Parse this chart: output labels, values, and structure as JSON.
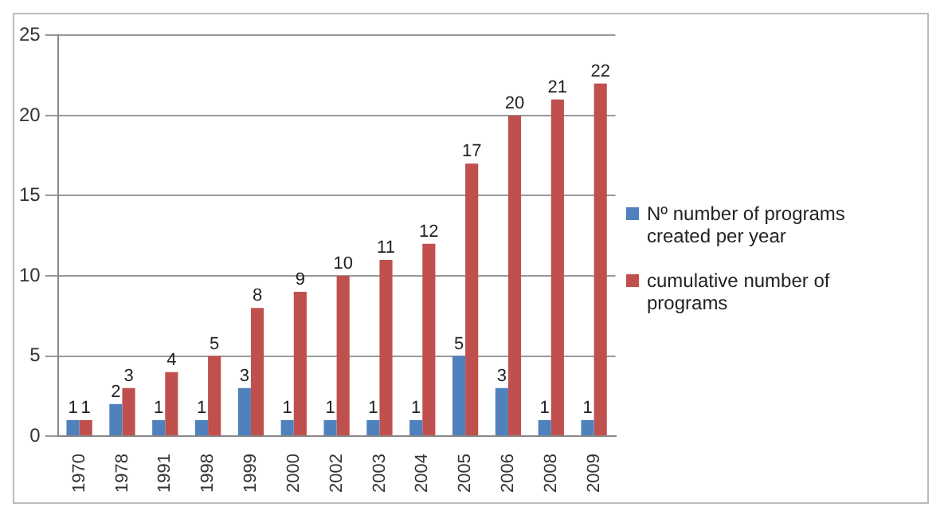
{
  "chart_data": {
    "type": "bar",
    "categories": [
      "1970",
      "1978",
      "1991",
      "1998",
      "1999",
      "2000",
      "2002",
      "2003",
      "2004",
      "2005",
      "2006",
      "2008",
      "2009"
    ],
    "series": [
      {
        "name": "Nº number of programs created per year",
        "color": "#4f81bd",
        "values": [
          1,
          2,
          1,
          1,
          3,
          1,
          1,
          1,
          1,
          5,
          3,
          1,
          1
        ]
      },
      {
        "name": "cumulative number of programs",
        "color": "#c0504d",
        "values": [
          1,
          3,
          4,
          5,
          8,
          9,
          10,
          11,
          12,
          17,
          20,
          21,
          22
        ]
      }
    ],
    "ylim": [
      0,
      25
    ],
    "yticks": [
      0,
      5,
      10,
      15,
      20,
      25
    ],
    "grid": "y",
    "legend": "right",
    "data_labels": true
  }
}
